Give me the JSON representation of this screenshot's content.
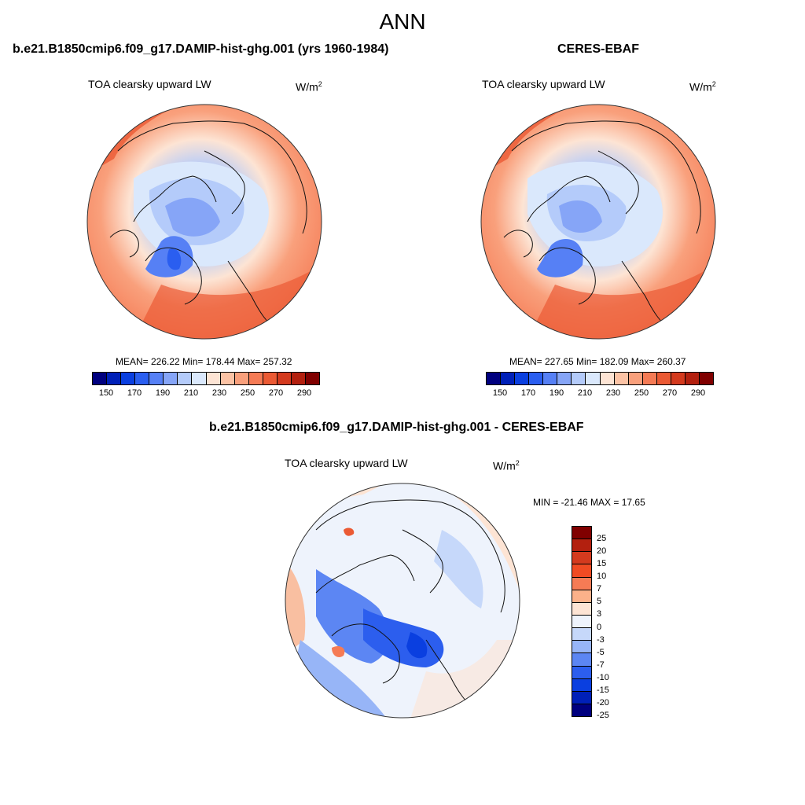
{
  "title": "ANN",
  "panels": [
    {
      "case_title": "b.e21.B1850cmip6.f09_g17.DAMIP-hist-ghg.001 (yrs 1960-1984)",
      "variable": "TOA clearsky upward LW",
      "units_base": "W/m",
      "units_exp": "2",
      "stats": "MEAN= 226.22  Min= 178.44  Max= 257.32",
      "colorbar": {
        "colors": [
          "#00007f",
          "#0020b8",
          "#0a3fe0",
          "#2a5ef0",
          "#5680f5",
          "#86a5f7",
          "#b4cbfa",
          "#dae8fc",
          "#fde4d4",
          "#fcc3a5",
          "#f9a07c",
          "#f57b55",
          "#eb5a34",
          "#d43a1e",
          "#b3200f",
          "#800000"
        ],
        "tick_labels": [
          "150",
          "170",
          "190",
          "210",
          "230",
          "250",
          "270",
          "290"
        ]
      }
    },
    {
      "case_title": "CERES-EBAF",
      "variable": "TOA clearsky upward LW",
      "units_base": "W/m",
      "units_exp": "2",
      "stats": "MEAN= 227.65  Min= 182.09  Max= 260.37",
      "colorbar": {
        "colors": [
          "#00007f",
          "#0020b8",
          "#0a3fe0",
          "#2a5ef0",
          "#5680f5",
          "#86a5f7",
          "#b4cbfa",
          "#dae8fc",
          "#fde4d4",
          "#fcc3a5",
          "#f9a07c",
          "#f57b55",
          "#eb5a34",
          "#d43a1e",
          "#b3200f",
          "#800000"
        ],
        "tick_labels": [
          "150",
          "170",
          "190",
          "210",
          "230",
          "250",
          "270",
          "290"
        ]
      }
    },
    {
      "case_title": "b.e21.B1850cmip6.f09_g17.DAMIP-hist-ghg.001 - CERES-EBAF",
      "variable": "TOA clearsky upward LW",
      "units_base": "W/m",
      "units_exp": "2",
      "stats": "MIN = -21.46 MAX =  17.65",
      "colorbar": {
        "colors": [
          "#800000",
          "#b3200f",
          "#d43a1e",
          "#f04b23",
          "#f57b55",
          "#fbb18a",
          "#fde4d4",
          "#eef3fc",
          "#c6d8fa",
          "#97b5f7",
          "#5c86f3",
          "#2c5eee",
          "#0a3fe0",
          "#0020b8",
          "#00007f"
        ],
        "tick_labels": [
          "25",
          "20",
          "15",
          "10",
          "7",
          "5",
          "3",
          "0",
          "-3",
          "-5",
          "-7",
          "-10",
          "-15",
          "-20",
          "-25"
        ]
      }
    }
  ]
}
